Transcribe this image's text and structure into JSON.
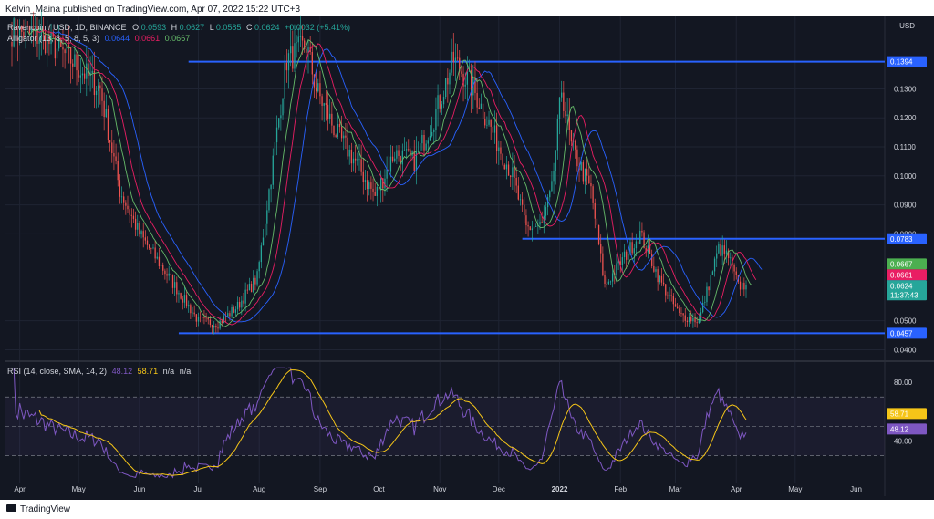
{
  "header": {
    "publisher_line": "Kelvin_Maina published on TradingView.com, Apr 07, 2022 15:22 UTC+3",
    "symbol_line": "Ravencoin / USD, 1D, BINANCE",
    "ohlc": {
      "o_label": "O",
      "o_value": "0.0593",
      "h_label": "H",
      "h_value": "0.0627",
      "l_label": "L",
      "l_value": "0.0585",
      "c_label": "C",
      "c_value": "0.0624",
      "change": "+0.0032 (+5.41%)"
    },
    "alligator_label": "Alligator (13, 8, 5, 8, 5, 3)",
    "alligator_values": [
      "0.0644",
      "0.0661",
      "0.0667"
    ]
  },
  "footer": {
    "brand": "TradingView"
  },
  "colors": {
    "background": "#131722",
    "grid": "#1f2433",
    "text": "#d1d4dc",
    "up": "#26a69a",
    "down": "#ef5350",
    "jaw": "#2962ff",
    "teeth": "#e91e63",
    "lips": "#66bb6a",
    "hline": "#2962ff",
    "rsi": "#7e57c2",
    "rsi_sma": "#f5c518"
  },
  "chart_data": [
    {
      "type": "candlestick",
      "pair_label": "USD",
      "y_ticks": [
        "0.0400",
        "0.0500",
        "0.0800",
        "0.0900",
        "0.1000",
        "0.1100",
        "0.1200",
        "0.1300"
      ],
      "ylim": [
        0.037,
        0.155
      ],
      "x_ticks": [
        "Apr",
        "May",
        "Jun",
        "Jul",
        "Aug",
        "Sep",
        "Oct",
        "Nov",
        "Dec",
        "2022",
        "Feb",
        "Mar",
        "Apr",
        "May",
        "Jun"
      ],
      "x_tick_days": [
        4,
        34,
        65,
        95,
        126,
        157,
        187,
        218,
        248,
        279,
        310,
        338,
        369,
        399,
        430
      ],
      "last_day": 374,
      "candle_anchors": [
        [
          0,
          0.15
        ],
        [
          15,
          0.148
        ],
        [
          30,
          0.14
        ],
        [
          45,
          0.13
        ],
        [
          55,
          0.095
        ],
        [
          65,
          0.08
        ],
        [
          75,
          0.07
        ],
        [
          85,
          0.06
        ],
        [
          95,
          0.05
        ],
        [
          105,
          0.049
        ],
        [
          115,
          0.055
        ],
        [
          125,
          0.065
        ],
        [
          130,
          0.09
        ],
        [
          140,
          0.14
        ],
        [
          150,
          0.145
        ],
        [
          155,
          0.13
        ],
        [
          165,
          0.115
        ],
        [
          175,
          0.105
        ],
        [
          185,
          0.093
        ],
        [
          195,
          0.108
        ],
        [
          205,
          0.105
        ],
        [
          215,
          0.12
        ],
        [
          220,
          0.13
        ],
        [
          225,
          0.14
        ],
        [
          235,
          0.13
        ],
        [
          245,
          0.115
        ],
        [
          255,
          0.1
        ],
        [
          262,
          0.082
        ],
        [
          270,
          0.083
        ],
        [
          275,
          0.095
        ],
        [
          280,
          0.13
        ],
        [
          285,
          0.11
        ],
        [
          295,
          0.095
        ],
        [
          302,
          0.062
        ],
        [
          310,
          0.07
        ],
        [
          320,
          0.08
        ],
        [
          330,
          0.064
        ],
        [
          340,
          0.052
        ],
        [
          350,
          0.05
        ],
        [
          360,
          0.075
        ],
        [
          365,
          0.072
        ],
        [
          370,
          0.062
        ],
        [
          374,
          0.0624
        ]
      ],
      "horizontal_lines": [
        {
          "value": 0.1394,
          "label": "0.1394",
          "from_day": 90
        },
        {
          "value": 0.0783,
          "label": "0.0783",
          "from_day": 260
        },
        {
          "value": 0.0457,
          "label": "0.0457",
          "from_day": 85
        }
      ],
      "price_tags": [
        {
          "value": 0.0667,
          "label": "0.0667",
          "color": "#4caf50"
        },
        {
          "value": 0.0661,
          "label": "0.0661",
          "color": "#e91e63"
        },
        {
          "value": 0.0644,
          "label": "0.0644",
          "color": "#2962ff"
        }
      ],
      "last_price": {
        "value": 0.0624,
        "label": "0.0624",
        "countdown": "11:37:43",
        "color": "#26a69a"
      },
      "alligator_series": [
        {
          "name": "Jaw",
          "color": "#2962ff",
          "period": 13,
          "offset": 8
        },
        {
          "name": "Teeth",
          "color": "#e91e63",
          "period": 8,
          "offset": 5
        },
        {
          "name": "Lips",
          "color": "#66bb6a",
          "period": 5,
          "offset": 3
        }
      ]
    },
    {
      "type": "line",
      "legend": "RSI (14, close, SMA, 14, 2)",
      "legend_values": [
        "48.12",
        "58.71",
        "n/a",
        "n/a"
      ],
      "y_ticks": [
        "40.00",
        "80.00"
      ],
      "ylim": [
        14,
        92
      ],
      "bands": [
        30,
        50,
        70
      ],
      "series": [
        {
          "name": "RSI",
          "color": "#7e57c2"
        },
        {
          "name": "SMA",
          "color": "#f5c518"
        }
      ],
      "value_tags": [
        {
          "value": 58.71,
          "label": "58.71",
          "color": "#f5c518"
        },
        {
          "value": 48.12,
          "label": "48.12",
          "color": "#7e57c2"
        }
      ]
    }
  ]
}
